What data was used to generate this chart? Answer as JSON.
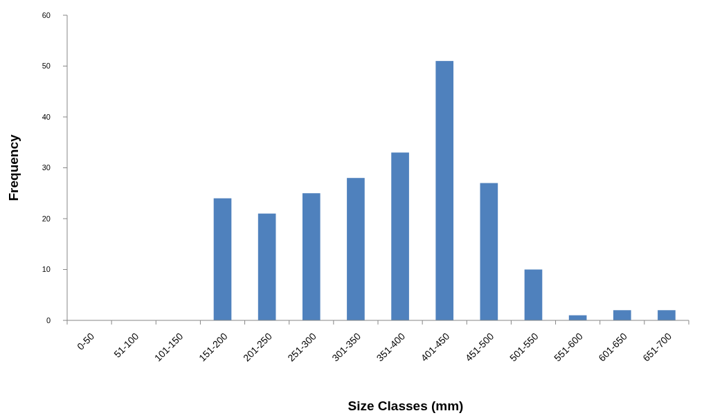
{
  "chart_data": {
    "type": "bar",
    "xlabel": "Size Classes (mm)",
    "ylabel": "Frequency",
    "categories": [
      "0-50",
      "51-100",
      "101-150",
      "151-200",
      "201-250",
      "251-300",
      "301-350",
      "351-400",
      "401-450",
      "451-500",
      "501-550",
      "551-600",
      "601-650",
      "651-700"
    ],
    "values": [
      0,
      0,
      0,
      24,
      21,
      25,
      28,
      33,
      51,
      27,
      10,
      1,
      2,
      2
    ],
    "color": "#4f81bd",
    "ylim": [
      0,
      60
    ],
    "yticks": [
      0,
      10,
      20,
      30,
      40,
      50,
      60
    ],
    "grid": false
  }
}
